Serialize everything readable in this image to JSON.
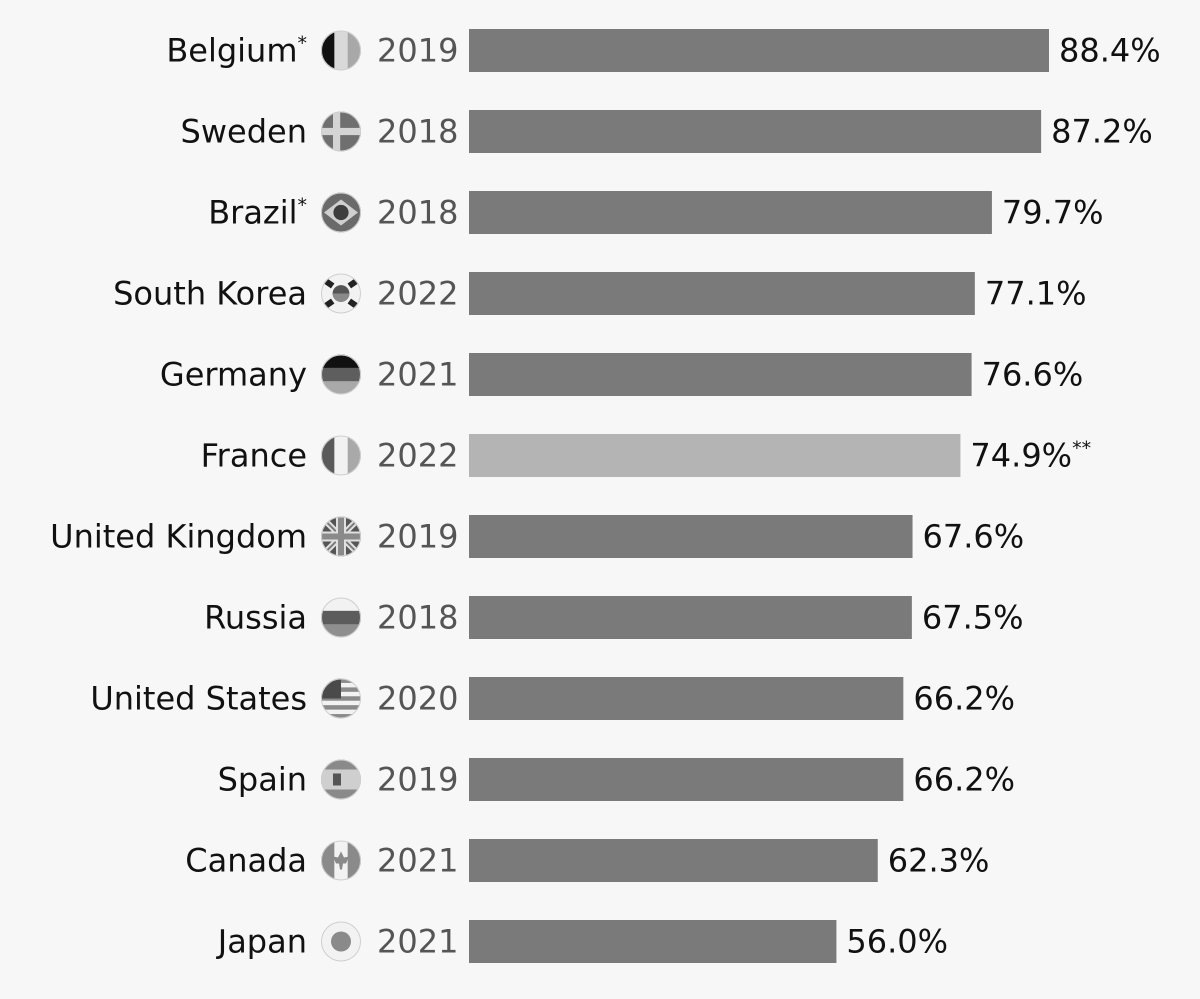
{
  "chart_data": {
    "type": "bar",
    "orientation": "horizontal",
    "value_unit": "%",
    "categories": [
      "Belgium",
      "Sweden",
      "Brazil",
      "South Korea",
      "Germany",
      "France",
      "United Kingdom",
      "Russia",
      "United States",
      "Spain",
      "Canada",
      "Japan"
    ],
    "category_marks": [
      "*",
      "",
      "*",
      "",
      "",
      "",
      "",
      "",
      "",
      "",
      "",
      ""
    ],
    "years": [
      "2019",
      "2018",
      "2018",
      "2022",
      "2021",
      "2022",
      "2019",
      "2018",
      "2020",
      "2019",
      "2021",
      "2021"
    ],
    "values": [
      88.4,
      87.2,
      79.7,
      77.1,
      76.6,
      74.9,
      67.6,
      67.5,
      66.2,
      66.2,
      62.3,
      56.0
    ],
    "value_labels": [
      "88.4%",
      "87.2%",
      "79.7%",
      "77.1%",
      "76.6%",
      "74.9%",
      "67.6%",
      "67.5%",
      "66.2%",
      "66.2%",
      "62.3%",
      "56.0%"
    ],
    "value_marks": [
      "",
      "",
      "",
      "",
      "",
      "**",
      "",
      "",
      "",
      "",
      "",
      ""
    ],
    "flag_icons": [
      "belgium-flag-icon",
      "sweden-flag-icon",
      "brazil-flag-icon",
      "south-korea-flag-icon",
      "germany-flag-icon",
      "france-flag-icon",
      "united-kingdom-flag-icon",
      "russia-flag-icon",
      "united-states-flag-icon",
      "spain-flag-icon",
      "canada-flag-icon",
      "japan-flag-icon"
    ],
    "highlighted": [
      false,
      false,
      false,
      false,
      false,
      true,
      false,
      false,
      false,
      false,
      false,
      false
    ],
    "xlim": [
      0,
      100
    ],
    "grid": false,
    "colors": {
      "bar": "#7a7a7a",
      "highlight": "#b4b4b4",
      "background": "#f7f7f7"
    }
  }
}
